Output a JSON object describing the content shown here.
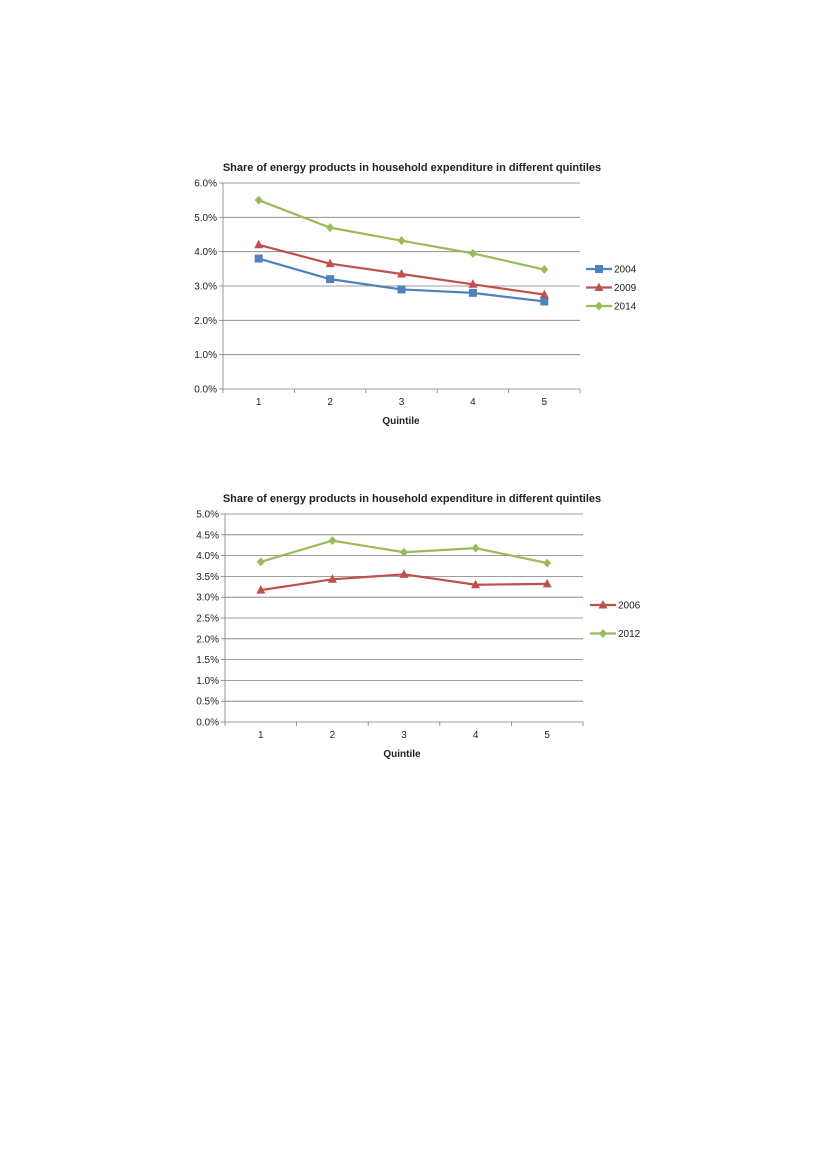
{
  "colors": {
    "blue": "#4F81BD",
    "red": "#C0504D",
    "green": "#9BBB59",
    "grid": "#7f7f7f",
    "axis": "#7f7f7f"
  },
  "chart_data": [
    {
      "type": "line",
      "title": "Share of energy products in household expenditure in different quintiles",
      "xlabel": "Quintile",
      "ylabel": "",
      "categories": [
        "1",
        "2",
        "3",
        "4",
        "5"
      ],
      "ylim": [
        0,
        0.06
      ],
      "yticks": [
        "0.0%",
        "1.0%",
        "2.0%",
        "3.0%",
        "4.0%",
        "5.0%",
        "6.0%"
      ],
      "grid": true,
      "legend": "right",
      "series": [
        {
          "name": "2004",
          "color": "#4F81BD",
          "marker": "square",
          "values": [
            0.038,
            0.032,
            0.029,
            0.028,
            0.0255
          ]
        },
        {
          "name": "2009",
          "color": "#C0504D",
          "marker": "triangle",
          "values": [
            0.042,
            0.0365,
            0.0335,
            0.0305,
            0.0275
          ]
        },
        {
          "name": "2014",
          "color": "#9BBB59",
          "marker": "diamond",
          "values": [
            0.055,
            0.047,
            0.0432,
            0.0395,
            0.0348
          ]
        }
      ]
    },
    {
      "type": "line",
      "title": "Share of energy products in household expenditure in different quintiles",
      "xlabel": "Quintile",
      "ylabel": "",
      "categories": [
        "1",
        "2",
        "3",
        "4",
        "5"
      ],
      "ylim": [
        0,
        0.05
      ],
      "yticks": [
        "0.0%",
        "0.5%",
        "1.0%",
        "1.5%",
        "2.0%",
        "2.5%",
        "3.0%",
        "3.5%",
        "4.0%",
        "4.5%",
        "5.0%"
      ],
      "grid": true,
      "legend": "right",
      "series": [
        {
          "name": "2006",
          "color": "#C0504D",
          "marker": "triangle",
          "values": [
            0.0317,
            0.0343,
            0.0355,
            0.033,
            0.0332
          ]
        },
        {
          "name": "2012",
          "color": "#9BBB59",
          "marker": "diamond",
          "values": [
            0.0385,
            0.0436,
            0.0408,
            0.0418,
            0.0382
          ]
        }
      ]
    }
  ]
}
